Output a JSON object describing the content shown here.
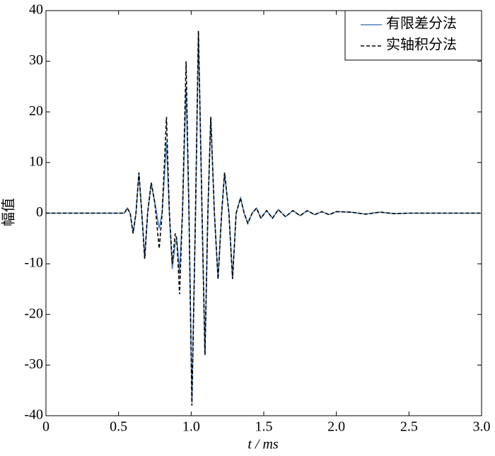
{
  "chart_data": {
    "type": "line",
    "xlabel": "t / ms",
    "ylabel": "幅值",
    "xlim": [
      0,
      3
    ],
    "ylim": [
      -40,
      40
    ],
    "xticks": [
      0,
      0.5,
      {
        "value": 1,
        "label": "1.0"
      },
      1.5,
      {
        "value": 2,
        "label": "2.0"
      },
      2.5,
      {
        "value": 3,
        "label": "3.0"
      }
    ],
    "yticks": [
      -40,
      -30,
      -20,
      -10,
      0,
      10,
      20,
      30,
      40
    ],
    "legend": "upper right",
    "x": [
      0,
      0.5,
      0.54,
      0.56,
      0.58,
      0.6,
      0.62,
      0.64,
      0.66,
      0.68,
      0.7,
      0.725,
      0.75,
      0.78,
      0.8,
      0.83,
      0.85,
      0.87,
      0.89,
      0.9,
      0.91,
      0.92,
      0.94,
      0.965,
      0.985,
      1.005,
      1.03,
      1.05,
      1.075,
      1.095,
      1.115,
      1.135,
      1.16,
      1.185,
      1.21,
      1.23,
      1.26,
      1.285,
      1.31,
      1.34,
      1.365,
      1.39,
      1.42,
      1.45,
      1.48,
      1.52,
      1.56,
      1.6,
      1.65,
      1.7,
      1.75,
      1.8,
      1.85,
      1.9,
      1.95,
      2.0,
      2.1,
      2.2,
      2.3,
      2.4,
      2.5,
      3.0
    ],
    "series": [
      {
        "name": "有限差分法",
        "color": "#4f81bd",
        "linestyle": "solid",
        "values": [
          0,
          0,
          0,
          1,
          0,
          -4,
          0,
          8,
          0,
          -9,
          0,
          6,
          2,
          -3,
          0,
          14,
          0,
          -11,
          -6,
          -5,
          -8,
          -12,
          0,
          25,
          0,
          -37,
          0,
          36,
          0,
          -28,
          0,
          19,
          0,
          -13,
          0,
          8,
          0,
          -13,
          0,
          3,
          0,
          -2,
          0,
          1,
          -1,
          0.5,
          -1,
          0.7,
          -0.7,
          0.5,
          -0.5,
          0.5,
          -0.3,
          0.3,
          -0.3,
          0.3,
          0.2,
          -0.2,
          0.2,
          -0.1,
          0,
          0
        ]
      },
      {
        "name": "实轴积分法",
        "color": "#000000",
        "linestyle": "dashed",
        "values": [
          0,
          0,
          0,
          1,
          0,
          -4,
          0,
          8,
          0,
          -9,
          0,
          6,
          2,
          -7,
          0,
          19,
          0,
          -10,
          -4,
          -5,
          -10,
          -16,
          0,
          30,
          0,
          -38,
          0,
          36,
          0,
          -28,
          0,
          19,
          0,
          -13,
          0,
          8,
          0,
          -13,
          0,
          3,
          0,
          -2,
          0,
          1,
          -1,
          0.5,
          -1,
          0.7,
          -0.7,
          0.5,
          -0.5,
          0.5,
          -0.3,
          0.3,
          -0.3,
          0.3,
          0.2,
          -0.2,
          0.2,
          -0.1,
          0,
          0
        ]
      }
    ]
  }
}
